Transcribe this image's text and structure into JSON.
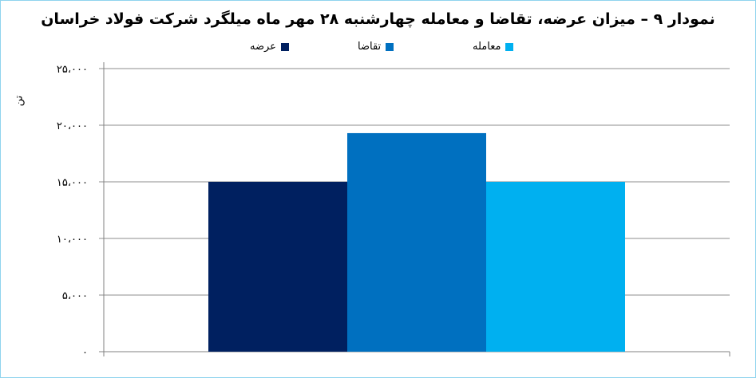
{
  "chart_data": {
    "type": "bar",
    "title": "نمودار ۹ – میزان عرضه، تقاضا و معامله چهارشنبه ۲۸ مهر ماه میلگرد شرکت فولاد خراسان",
    "ylabel": "تن",
    "xlabel": "",
    "categories": [
      ""
    ],
    "series": [
      {
        "name": "عرضه",
        "values": [
          15000
        ],
        "color": "#002060"
      },
      {
        "name": "تقاضا",
        "values": [
          19300
        ],
        "color": "#0070C0"
      },
      {
        "name": "معامله",
        "values": [
          15000
        ],
        "color": "#00B0F0"
      }
    ],
    "ylim": [
      0,
      25000
    ],
    "yticks": [
      0,
      5000,
      10000,
      15000,
      20000,
      25000
    ],
    "ytick_labels": [
      "۰",
      "۵،۰۰۰",
      "۱۰،۰۰۰",
      "۱۵،۰۰۰",
      "۲۰،۰۰۰",
      "۲۵،۰۰۰"
    ],
    "grid": true,
    "legend_position": "top"
  }
}
